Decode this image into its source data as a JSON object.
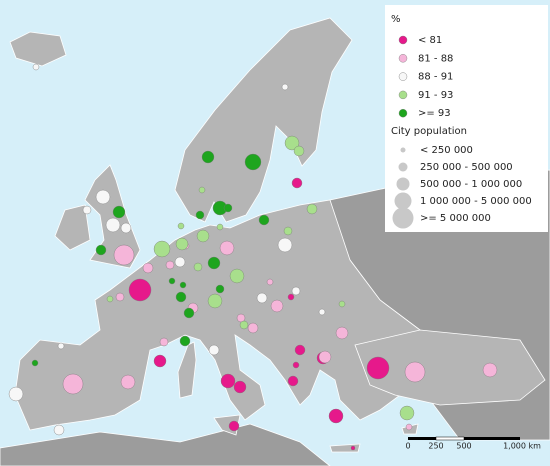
{
  "legend": {
    "title": "%",
    "classes": [
      {
        "label": "< 81",
        "color": "#e6198b"
      },
      {
        "label": "81 - 88",
        "color": "#f5b5d9"
      },
      {
        "label": "88 - 91",
        "color": "#f7f7f7"
      },
      {
        "label": "91 - 93",
        "color": "#a8df8c"
      },
      {
        "label": ">= 93",
        "color": "#1ea51e"
      }
    ],
    "size_title": "City population",
    "sizes": [
      "< 250 000",
      "250 000 - 500 000",
      "500 000 - 1 000 000",
      "1 000 000 - 5 000 000",
      ">= 5 000 000"
    ]
  },
  "scale_bar": {
    "labels": [
      "0",
      "250",
      "500",
      "1,000 km"
    ]
  }
}
